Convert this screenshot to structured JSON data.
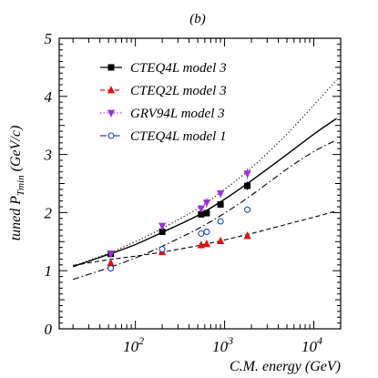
{
  "chart_data": {
    "type": "line",
    "title": "(b)",
    "xlabel": "C.M. energy (GeV)",
    "ylabel_prefix": "tuned P",
    "ylabel_sub": "Tmin",
    "ylabel_suffix": " (GeV/c)",
    "x_scale": "log",
    "xlim": [
      14,
      20000
    ],
    "ylim": [
      0,
      5
    ],
    "x_ticks": [
      {
        "base": "10",
        "exp": "2",
        "value": 100
      },
      {
        "base": "10",
        "exp": "3",
        "value": 1000
      },
      {
        "base": "10",
        "exp": "4",
        "value": 10000
      }
    ],
    "y_ticks": [
      "0",
      "1",
      "2",
      "3",
      "4",
      "5"
    ],
    "legend_position": "top-left",
    "series": [
      {
        "name": "CTEQ4L model 3",
        "color": "#000000",
        "line_style": "solid",
        "marker": "square",
        "marker_fill": "filled",
        "curve": [
          [
            20,
            1.07
          ],
          [
            50,
            1.28
          ],
          [
            100,
            1.45
          ],
          [
            200,
            1.66
          ],
          [
            500,
            1.95
          ],
          [
            1000,
            2.23
          ],
          [
            2000,
            2.55
          ],
          [
            5000,
            3.0
          ],
          [
            10000,
            3.35
          ],
          [
            18000,
            3.62
          ]
        ],
        "points": [
          [
            53,
            1.29
          ],
          [
            200,
            1.67
          ],
          [
            546,
            1.97
          ],
          [
            630,
            1.99
          ],
          [
            900,
            2.14
          ],
          [
            1800,
            2.46
          ]
        ],
        "errors": [
          0.03,
          0.03,
          0.04,
          0.04,
          0.04,
          0.07
        ]
      },
      {
        "name": "CTEQ2L model 3",
        "color": "#e01010",
        "line_style": "dashed",
        "marker": "triangle",
        "marker_fill": "filled",
        "curve": [
          [
            20,
            1.09
          ],
          [
            50,
            1.19
          ],
          [
            100,
            1.25
          ],
          [
            200,
            1.32
          ],
          [
            500,
            1.43
          ],
          [
            1000,
            1.53
          ],
          [
            2000,
            1.64
          ],
          [
            5000,
            1.8
          ],
          [
            10000,
            1.92
          ],
          [
            18000,
            2.03
          ]
        ],
        "points": [
          [
            53,
            1.13
          ],
          [
            200,
            1.32
          ],
          [
            546,
            1.44
          ],
          [
            630,
            1.46
          ],
          [
            900,
            1.51
          ],
          [
            1800,
            1.6
          ]
        ],
        "errors": [
          0.04,
          0.03,
          0.04,
          0.04,
          0.03,
          0.04
        ]
      },
      {
        "name": "GRV94L model 3",
        "color": "#9b30d9",
        "line_style": "dotted",
        "marker": "triangle-down",
        "marker_fill": "filled",
        "curve": [
          [
            20,
            1.08
          ],
          [
            50,
            1.3
          ],
          [
            100,
            1.5
          ],
          [
            200,
            1.73
          ],
          [
            500,
            2.07
          ],
          [
            1000,
            2.4
          ],
          [
            2000,
            2.77
          ],
          [
            5000,
            3.35
          ],
          [
            10000,
            3.85
          ],
          [
            18000,
            4.28
          ]
        ],
        "points": [
          [
            53,
            1.29
          ],
          [
            200,
            1.77
          ],
          [
            546,
            2.07
          ],
          [
            630,
            2.17
          ],
          [
            900,
            2.33
          ],
          [
            1800,
            2.67
          ]
        ],
        "errors": [
          0.04,
          0.04,
          0.05,
          0.08,
          0.05,
          0.09
        ]
      },
      {
        "name": "CTEQ4L model 1",
        "color": "#2040c0",
        "line_style": "dash-dot",
        "marker": "circle",
        "marker_fill": "open",
        "curve": [
          [
            20,
            0.85
          ],
          [
            50,
            1.05
          ],
          [
            100,
            1.22
          ],
          [
            200,
            1.42
          ],
          [
            500,
            1.72
          ],
          [
            1000,
            1.99
          ],
          [
            2000,
            2.3
          ],
          [
            5000,
            2.75
          ],
          [
            10000,
            3.05
          ],
          [
            18000,
            3.25
          ]
        ],
        "points": [
          [
            53,
            1.04
          ],
          [
            200,
            1.37
          ],
          [
            546,
            1.64
          ],
          [
            630,
            1.67
          ],
          [
            900,
            1.85
          ],
          [
            1800,
            2.05
          ]
        ],
        "errors": [
          0.03,
          0.03,
          0.04,
          0.04,
          0.04,
          0.05
        ]
      }
    ]
  }
}
